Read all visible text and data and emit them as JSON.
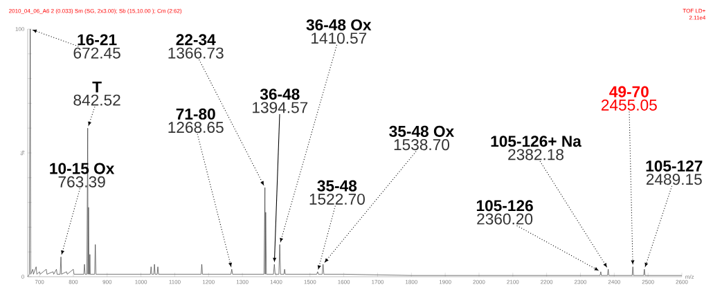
{
  "chart_data": {
    "type": "line",
    "title": "2010_04_06_A6 2 (0.033) Sm (SG, 2x3.00); Sb (15,10.00 ); Cm (2:62)",
    "xlabel": "m/z",
    "ylabel": "%",
    "annotations": [
      "TOF LD+",
      "2.11e4",
      "16-21",
      {
        "text": "672.45",
        "x": 672.45,
        "y": 100
      },
      "T",
      {
        "text": "842.52",
        "x": 842.52,
        "y": 60
      },
      "10-15 Ox",
      {
        "text": "763.39",
        "x": 763.39,
        "y": 8
      },
      "71-80",
      {
        "text": "1268.65",
        "x": 1268.65,
        "y": 3
      },
      "22-34",
      {
        "text": "1366.73",
        "x": 1366.73,
        "y": 36
      },
      "36-48",
      {
        "text": "1394.57",
        "x": 1394.57,
        "y": 5
      },
      "36-48 Ox",
      {
        "text": "1410.57",
        "x": 1410.57,
        "y": 13
      },
      "35-48",
      {
        "text": "1522.70",
        "x": 1522.7,
        "y": 2
      },
      "35-48 Ox",
      {
        "text": "1538.70",
        "x": 1538.7,
        "y": 5
      },
      "105-126+ Na",
      {
        "text": "2382.18",
        "x": 2382.18,
        "y": 3
      },
      "105-126",
      {
        "text": "2360.20",
        "x": 2360.2,
        "y": 2
      },
      "49-70",
      {
        "text": "2455.05",
        "x": 2455.05,
        "y": 4
      },
      "105-127",
      {
        "text": "2489.15",
        "x": 2489.15,
        "y": 3
      }
    ],
    "series": [
      {
        "color": "#333333",
        "x": [
          665,
          670,
          672.45,
          674,
          680,
          682,
          690,
          692,
          700,
          702,
          720,
          722,
          740,
          742,
          750,
          752,
          761,
          763.39,
          765,
          780,
          782,
          800,
          802,
          831,
          833,
          835,
          840,
          842.52,
          843.5,
          845,
          846.5,
          848,
          849,
          850,
          863,
          865,
          867,
          900,
          1000,
          1028,
          1030,
          1032,
          1038,
          1040,
          1042,
          1048,
          1050,
          1052,
          1100,
          1150,
          1178,
          1180,
          1182,
          1266,
          1268.65,
          1271,
          1364,
          1366.73,
          1367.8,
          1369,
          1371,
          1392,
          1394.57,
          1397,
          1408,
          1410.57,
          1413,
          1423,
          1425,
          1427,
          1500,
          1520,
          1522.7,
          1525,
          1536,
          1538.7,
          1541,
          1600,
          1800,
          2000,
          2358,
          2360.2,
          2362,
          2380,
          2382.18,
          2384,
          2453,
          2455.05,
          2457,
          2487,
          2489.15,
          2491,
          2600
        ],
        "values": [
          0,
          1,
          100,
          1,
          3,
          1,
          4,
          1,
          2,
          1,
          3,
          1,
          2,
          1,
          3,
          1,
          1,
          8,
          1,
          2,
          1,
          3,
          1,
          1,
          5,
          1,
          1,
          60,
          1,
          28,
          1,
          1,
          9,
          1,
          1,
          13,
          1,
          1,
          1,
          1,
          4,
          1,
          1,
          5,
          1,
          1,
          4,
          1,
          1,
          1,
          1,
          5,
          1,
          1,
          3,
          1,
          1,
          36,
          1,
          26,
          1,
          1,
          5,
          1,
          1,
          13,
          1,
          1,
          3,
          1,
          1,
          1,
          2,
          1,
          1,
          5,
          1,
          1,
          0.5,
          0.5,
          0.5,
          2,
          0.5,
          0.5,
          3,
          0.5,
          0.5,
          4,
          0.5,
          0.5,
          3,
          0.5,
          0.5
        ]
      }
    ],
    "xlim": [
      665,
      2600
    ],
    "ylim": [
      0,
      100
    ],
    "xticks": [
      700,
      800,
      900,
      1000,
      1100,
      1200,
      1300,
      1400,
      1500,
      1600,
      1700,
      1800,
      1900,
      2000,
      2100,
      2200,
      2300,
      2400,
      2500,
      2600
    ],
    "yticks": [
      0,
      {
        "value": 10,
        "label": null
      },
      {
        "value": 20,
        "label": null
      },
      {
        "value": 30,
        "label": null
      },
      {
        "value": 40,
        "label": null
      },
      {
        "value": 50,
        "label": null
      },
      {
        "value": 60,
        "label": null
      },
      {
        "value": 70,
        "label": null
      },
      {
        "value": 80,
        "label": null
      },
      {
        "value": 90,
        "label": null
      },
      100
    ],
    "marker": "none",
    "line_style": "solid"
  }
}
